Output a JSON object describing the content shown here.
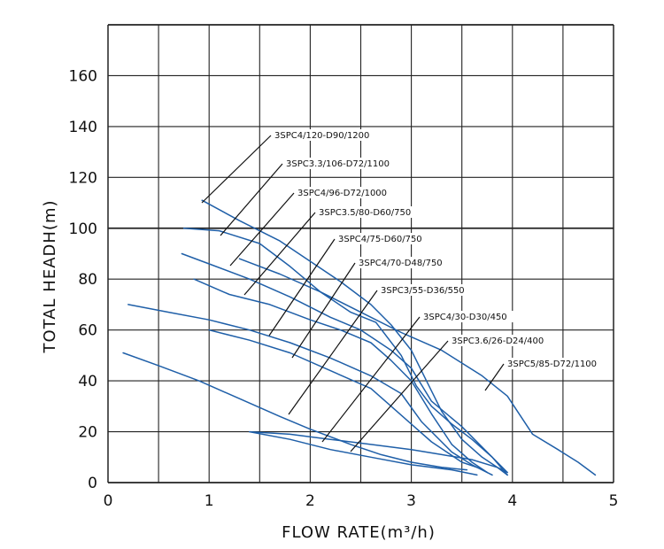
{
  "chart_data": {
    "type": "line",
    "xlabel": "FLOW RATE(m³/h)",
    "ylabel": "TOTAL HEADH(m)",
    "xlim": [
      0,
      5
    ],
    "ylim": [
      0,
      180
    ],
    "x_ticks": [
      "0",
      "1",
      "2",
      "3",
      "4",
      "5"
    ],
    "y_ticks": [
      "0",
      "20",
      "40",
      "60",
      "80",
      "100",
      "120",
      "140",
      "160"
    ],
    "grid": true,
    "series": [
      {
        "name": "3SPC4/120-D90/1200",
        "x": [
          0.93,
          1.3,
          1.7,
          2.0,
          2.3,
          2.6,
          2.8,
          3.0,
          3.15,
          3.3,
          3.5,
          3.7,
          3.85,
          3.95
        ],
        "y": [
          111,
          103,
          95,
          87,
          79,
          70,
          62,
          52,
          40,
          28,
          17,
          10,
          6,
          4
        ]
      },
      {
        "name": "3SPC3.3/106-D72/1100",
        "x": [
          0.75,
          1.1,
          1.5,
          1.8,
          2.1,
          2.4,
          2.65,
          2.9,
          3.05,
          3.2,
          3.4,
          3.6,
          3.8,
          3.95
        ],
        "y": [
          100,
          99,
          94,
          85,
          75,
          67,
          63,
          50,
          38,
          30,
          23,
          17,
          10,
          3
        ]
      },
      {
        "name": "3SPC4/96-D72/1000",
        "x": [
          0.73,
          1.0,
          1.4,
          1.8,
          2.2,
          2.5,
          2.8,
          3.0,
          3.2,
          3.5,
          3.7,
          3.9,
          3.95
        ],
        "y": [
          90,
          86,
          80,
          73,
          65,
          60,
          52,
          45,
          32,
          22,
          14,
          6,
          4
        ]
      },
      {
        "name": "3SPC3.5/80-D60/750",
        "x": [
          0.85,
          1.2,
          1.6,
          2.0,
          2.3,
          2.6,
          2.8,
          3.0,
          3.2,
          3.4,
          3.6,
          3.75
        ],
        "y": [
          80,
          74,
          70,
          64,
          60,
          55,
          48,
          40,
          27,
          15,
          8,
          4
        ]
      },
      {
        "name": "3SPC4/75-D60/750",
        "x": [
          0.2,
          0.6,
          1.0,
          1.4,
          1.8,
          2.2,
          2.6,
          2.9,
          3.1,
          3.4,
          3.6,
          3.8
        ],
        "y": [
          70,
          67,
          64,
          60,
          55,
          49,
          42,
          35,
          24,
          12,
          7,
          3
        ]
      },
      {
        "name": "3SPC4/70-D48/750",
        "x": [
          1.0,
          1.4,
          1.8,
          2.2,
          2.6,
          2.8,
          3.0,
          3.2,
          3.35,
          3.5,
          3.65
        ],
        "y": [
          60,
          56,
          51,
          44,
          37,
          30,
          23,
          16,
          12,
          8,
          6
        ]
      },
      {
        "name": "3SPC3/55-D36/550",
        "x": [
          0.15,
          0.5,
          0.9,
          1.3,
          1.7,
          2.0,
          2.4,
          2.7,
          3.0,
          3.3,
          3.55
        ],
        "y": [
          51,
          46,
          40,
          33,
          26,
          21,
          15,
          11,
          8,
          6,
          5
        ]
      },
      {
        "name": "3SPC4/30-D30/450",
        "x": [
          1.4,
          1.8,
          2.2,
          2.6,
          3.0,
          3.3,
          3.6,
          3.85,
          3.95
        ],
        "y": [
          20,
          19,
          17,
          15,
          13,
          11,
          9,
          6,
          3
        ]
      },
      {
        "name": "3SPC3.6/26-D24/400",
        "x": [
          1.4,
          1.8,
          2.2,
          2.6,
          3.0,
          3.4,
          3.65
        ],
        "y": [
          20,
          17,
          13,
          10,
          7,
          5,
          3
        ]
      },
      {
        "name": "3SPC5/85-D72/1100",
        "x": [
          1.3,
          1.7,
          2.1,
          2.5,
          2.9,
          3.3,
          3.7,
          3.95,
          4.2,
          4.45,
          4.65,
          4.82
        ],
        "y": [
          88,
          82,
          75,
          67,
          59,
          52,
          42,
          34,
          19,
          13,
          8,
          3
        ]
      }
    ],
    "annotations": [
      "3SPC4/120-D90/1200",
      "3SPC3.3/106-D72/1100",
      "3SPC4/96-D72/1000",
      "3SPC3.5/80-D60/750",
      "3SPC4/75-D60/750",
      "3SPC4/70-D48/750",
      "3SPC3/55-D36/550",
      "3SPC4/30-D30/450",
      "3SPC3.6/26-D24/400",
      "3SPC5/85-D72/1100"
    ]
  }
}
